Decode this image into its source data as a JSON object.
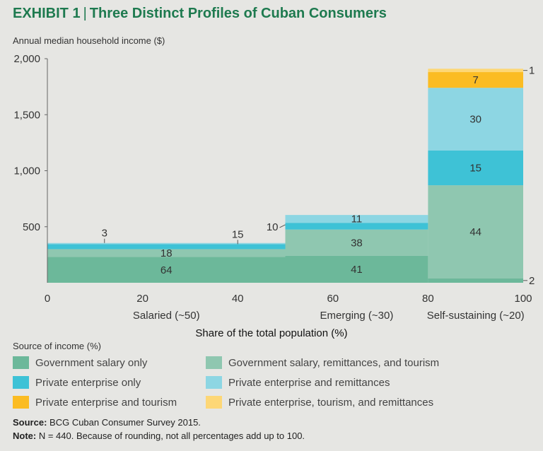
{
  "header": {
    "exhibit": "EXHIBIT 1",
    "separator": "|",
    "title": "Three Distinct Profiles of Cuban Consumers"
  },
  "chart_data": {
    "type": "bar",
    "subtype": "variable-width stacked (marimekko)",
    "title": "Three Distinct Profiles of Cuban Consumers",
    "ylabel": "Annual median household income ($)",
    "xlabel": "Share of the total population (%)",
    "ylim": [
      0,
      2000
    ],
    "xlim": [
      0,
      100
    ],
    "yticks": [
      500,
      1000,
      1500,
      2000
    ],
    "ytick_labels": [
      "500",
      "1,000",
      "1,500",
      "2,000"
    ],
    "xticks": [
      0,
      20,
      40,
      60,
      80,
      100
    ],
    "series": [
      {
        "key": "gov",
        "name": "Government salary only",
        "color": "#6cb89a"
      },
      {
        "key": "gov_rem",
        "name": "Government salary, remittances, and tourism",
        "color": "#8fc7b0"
      },
      {
        "key": "priv",
        "name": "Private enterprise only",
        "color": "#3ec2d6"
      },
      {
        "key": "priv_rem",
        "name": "Private enterprise and remittances",
        "color": "#8dd6e3"
      },
      {
        "key": "priv_tour",
        "name": "Private enterprise and tourism",
        "color": "#fbbc23"
      },
      {
        "key": "priv_tour_rem",
        "name": "Private enterprise, tourism, and remittances",
        "color": "#fdd776"
      }
    ],
    "groups": [
      {
        "label": "Salaried (~50)",
        "x_start": 0,
        "x_end": 50,
        "segments": [
          {
            "series": "gov",
            "pct": "64",
            "y0": 0,
            "y1": 230,
            "label_pos": "center"
          },
          {
            "series": "gov_rem",
            "pct": "18",
            "y0": 230,
            "y1": 300,
            "label_pos": "center"
          },
          {
            "series": "priv",
            "pct": "15",
            "y0": 300,
            "y1": 345,
            "label_pos": "above",
            "label_x": 40
          },
          {
            "series": "priv_rem",
            "pct": "3",
            "y0": 345,
            "y1": 355,
            "label_pos": "above",
            "label_x": 12
          }
        ]
      },
      {
        "label": "Emerging (~30)",
        "x_start": 50,
        "x_end": 80,
        "segments": [
          {
            "series": "gov",
            "pct": "41",
            "y0": 0,
            "y1": 240,
            "label_pos": "center"
          },
          {
            "series": "gov_rem",
            "pct": "38",
            "y0": 240,
            "y1": 475,
            "label_pos": "center"
          },
          {
            "series": "priv",
            "pct": "10",
            "y0": 475,
            "y1": 535,
            "label_pos": "left"
          },
          {
            "series": "priv_rem",
            "pct": "11",
            "y0": 535,
            "y1": 605,
            "label_pos": "center"
          }
        ]
      },
      {
        "label": "Self-sustaining (~20)",
        "x_start": 80,
        "x_end": 100,
        "segments": [
          {
            "series": "gov",
            "pct": "2",
            "y0": 0,
            "y1": 40,
            "label_pos": "right"
          },
          {
            "series": "gov_rem",
            "pct": "44",
            "y0": 40,
            "y1": 870,
            "label_pos": "center"
          },
          {
            "series": "priv",
            "pct": "15",
            "y0": 870,
            "y1": 1180,
            "label_pos": "center"
          },
          {
            "series": "priv_rem",
            "pct": "30",
            "y0": 1180,
            "y1": 1740,
            "label_pos": "center"
          },
          {
            "series": "priv_tour",
            "pct": "7",
            "y0": 1740,
            "y1": 1880,
            "label_pos": "center"
          },
          {
            "series": "priv_tour_rem",
            "pct": "1",
            "y0": 1880,
            "y1": 1910,
            "label_pos": "right"
          }
        ]
      }
    ]
  },
  "legend": {
    "title": "Source of income (%)",
    "items": [
      {
        "label": "Government salary only",
        "color": "#6cb89a"
      },
      {
        "label": "Government salary, remittances, and tourism",
        "color": "#8fc7b0"
      },
      {
        "label": "Private enterprise only",
        "color": "#3ec2d6"
      },
      {
        "label": "Private enterprise and remittances",
        "color": "#8dd6e3"
      },
      {
        "label": "Private enterprise and tourism",
        "color": "#fbbc23"
      },
      {
        "label": "Private enterprise, tourism, and remittances",
        "color": "#fdd776"
      }
    ]
  },
  "footer": {
    "source_label": "Source:",
    "source_text": "BCG Cuban Consumer Survey 2015.",
    "note_label": "Note:",
    "note_text": "N = 440. Because of rounding, not all percentages add up to 100."
  }
}
